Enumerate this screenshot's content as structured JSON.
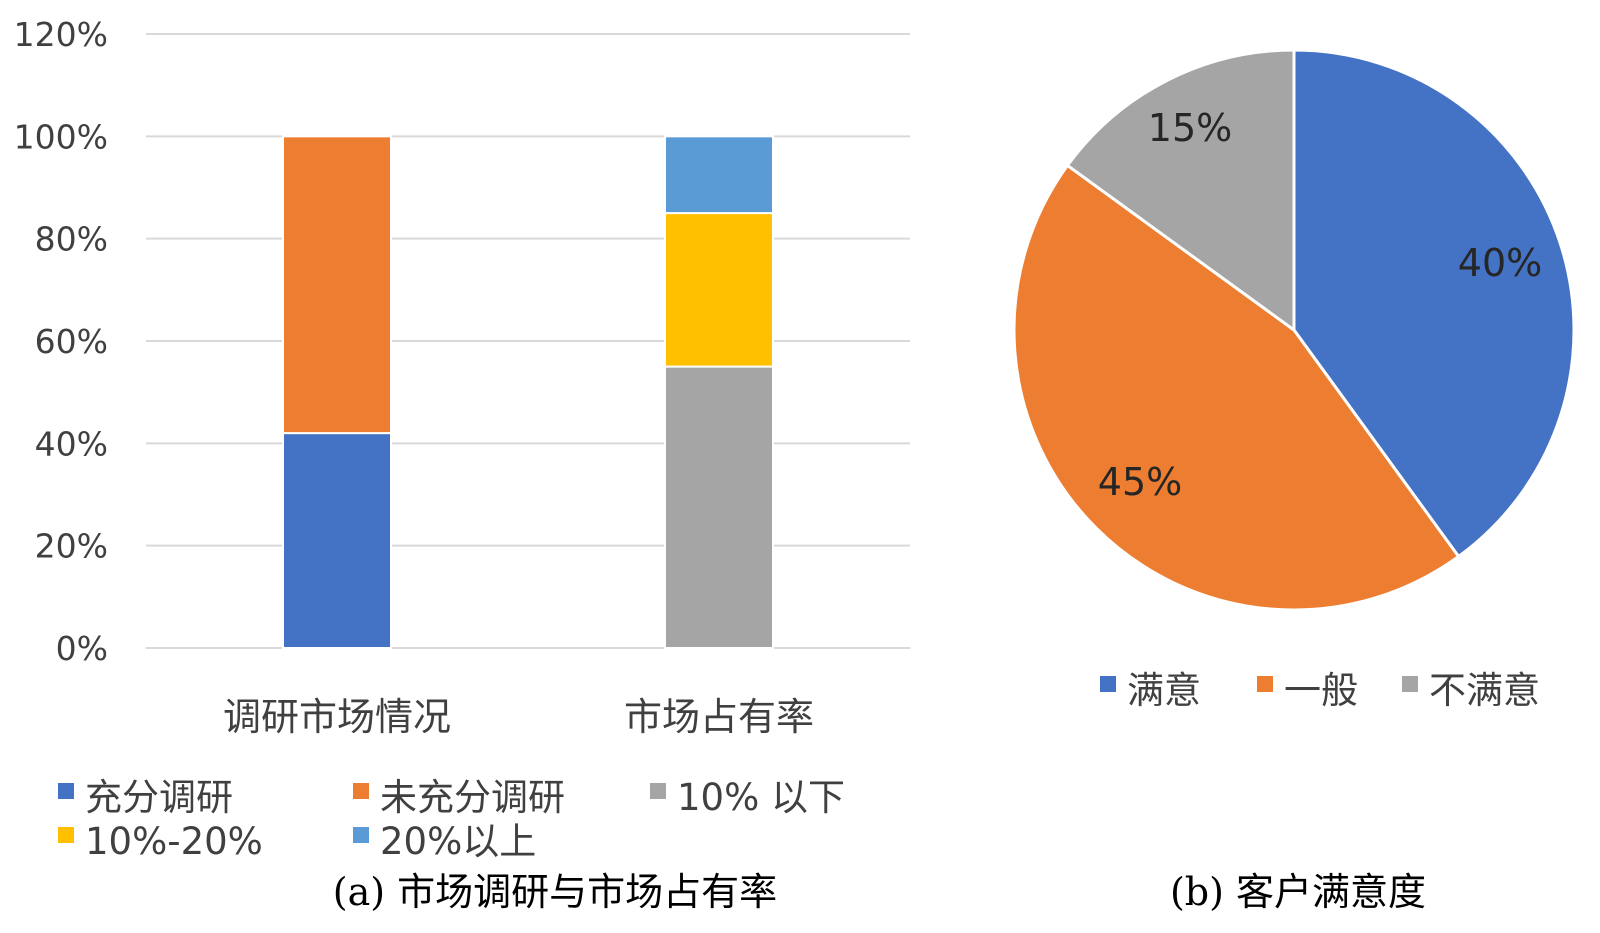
{
  "colors": {
    "blue": "#4472C4",
    "orange": "#ED7D31",
    "gray": "#A5A5A5",
    "yellow": "#FFC000",
    "lightblue": "#5B9BD5",
    "grid": "#D9D9D9",
    "text": "#404040"
  },
  "chart_data": [
    {
      "type": "bar",
      "stacked": true,
      "caption": "(a) 市场调研与市场占有率",
      "categories": [
        "调研市场情况",
        "市场占有率"
      ],
      "ylim": [
        0,
        120
      ],
      "yticks": [
        {
          "value": 0,
          "label": "0%"
        },
        {
          "value": 20,
          "label": "20%"
        },
        {
          "value": 40,
          "label": "40%"
        },
        {
          "value": 60,
          "label": "60%"
        },
        {
          "value": 80,
          "label": "80%"
        },
        {
          "value": 100,
          "label": "100%"
        },
        {
          "value": 120,
          "label": "120%"
        }
      ],
      "grid": true,
      "legend_position": "bottom",
      "series": [
        {
          "name": "充分调研",
          "color": "#4472C4",
          "values": [
            42,
            0
          ]
        },
        {
          "name": "未充分调研",
          "color": "#ED7D31",
          "values": [
            58,
            0
          ]
        },
        {
          "name": "10% 以下",
          "color": "#A5A5A5",
          "values": [
            0,
            55
          ]
        },
        {
          "name": "10%-20%",
          "color": "#FFC000",
          "values": [
            0,
            30
          ]
        },
        {
          "name": "20%以上",
          "color": "#5B9BD5",
          "values": [
            0,
            15
          ]
        }
      ]
    },
    {
      "type": "pie",
      "caption": "(b) 客户满意度",
      "legend_position": "bottom",
      "slices": [
        {
          "name": "满意",
          "value": 40,
          "label": "40%",
          "color": "#4472C4"
        },
        {
          "name": "一般",
          "value": 45,
          "label": "45%",
          "color": "#ED7D31"
        },
        {
          "name": "不满意",
          "value": 15,
          "label": "15%",
          "color": "#A5A5A5"
        }
      ]
    }
  ]
}
